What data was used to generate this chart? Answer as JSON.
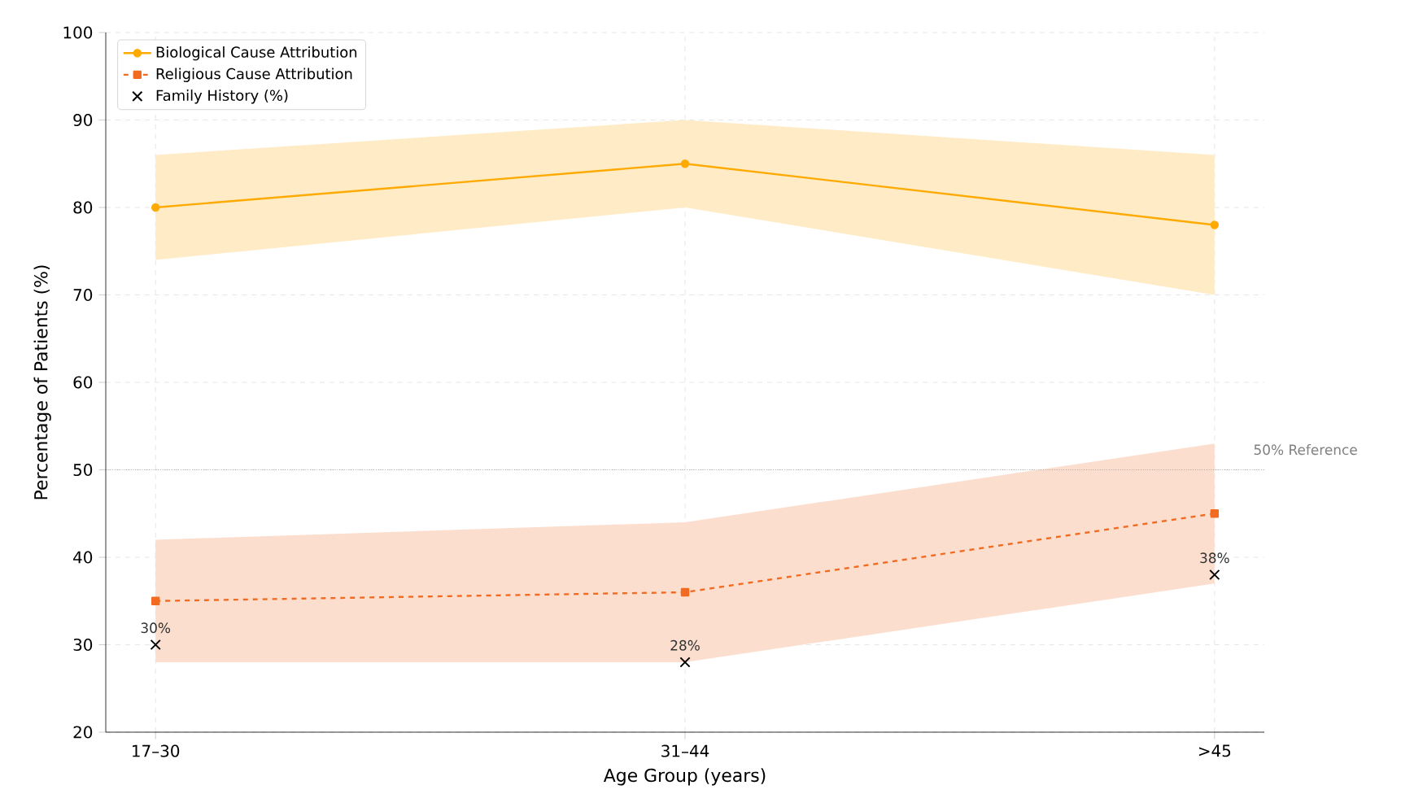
{
  "chart_data": {
    "type": "line",
    "xlabel": "Age Group (years)",
    "ylabel": "Percentage of Patients (%)",
    "categories": [
      "17–30",
      "31–44",
      ">45"
    ],
    "ylim": [
      20,
      100
    ],
    "yticks": [
      20,
      30,
      40,
      50,
      60,
      70,
      80,
      90,
      100
    ],
    "grid": true,
    "legend": "top left",
    "series": [
      {
        "name": "Biological Cause Attribution",
        "color": "#ffaa00",
        "marker": "circle",
        "line_style": "solid",
        "values": [
          80,
          85,
          78
        ],
        "lower": [
          74,
          80,
          70
        ],
        "upper": [
          86,
          90,
          86
        ]
      },
      {
        "name": "Religious Cause Attribution",
        "color": "#f26b21",
        "marker": "square",
        "line_style": "dashed",
        "values": [
          35,
          36,
          45
        ],
        "lower": [
          28,
          28,
          37
        ],
        "upper": [
          42,
          44,
          53
        ]
      },
      {
        "name": "Family History (%)",
        "type": "scatter",
        "color": "#000000",
        "marker": "cross",
        "values": [
          30,
          28,
          38
        ],
        "value_labels": [
          "30%",
          "28%",
          "38%"
        ]
      }
    ],
    "ref_lines": [
      {
        "axis": "y",
        "value": 50,
        "label": "50% Reference",
        "color": "#808080",
        "line_style": "dotted"
      }
    ]
  }
}
